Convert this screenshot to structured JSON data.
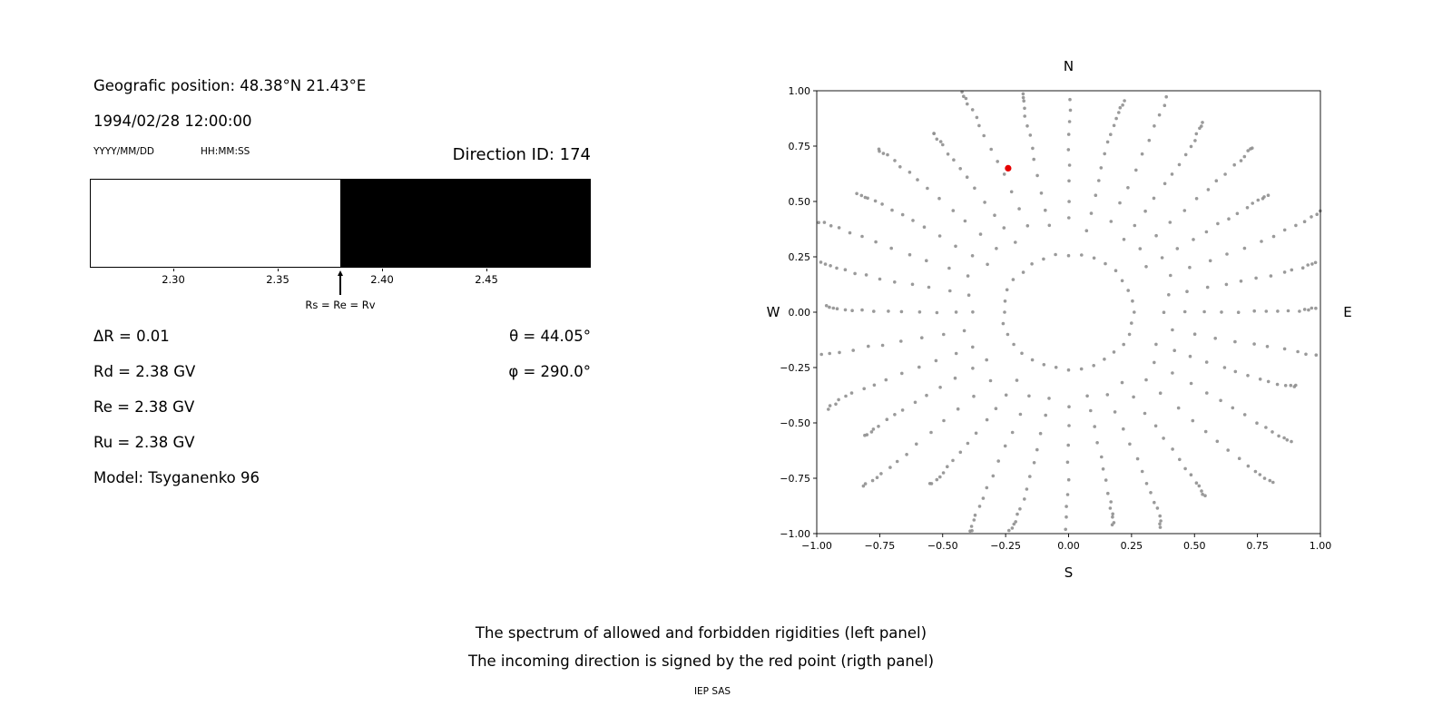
{
  "left_panel": {
    "geo_position": "Geografic position: 48.38°N 21.43°E",
    "datetime": "1994/02/28 12:00:00",
    "date_format_label": "YYYY/MM/DD",
    "time_format_label": "HH:MM:SS",
    "direction_id_label": "Direction ID: 174",
    "params_left": [
      "ΔR = 0.01",
      "Rd = 2.38 GV",
      "Re = 2.38 GV",
      "Ru = 2.38 GV",
      "Model: Tsyganenko 96"
    ],
    "params_right": [
      "θ = 44.05°",
      "φ = 290.0°"
    ]
  },
  "chart_data": [
    {
      "type": "area",
      "name": "rigidity-spectrum",
      "title": "",
      "xlim": [
        2.26,
        2.5
      ],
      "xticks": [
        2.3,
        2.35,
        2.4,
        2.45
      ],
      "boundary": 2.38,
      "regions": [
        {
          "from": 2.26,
          "to": 2.38,
          "color": "#ffffff",
          "label": "allowed rigidities"
        },
        {
          "from": 2.38,
          "to": 2.5,
          "color": "#000000",
          "label": "forbidden rigidities"
        }
      ],
      "annotation": "Rs = Re = Rv"
    },
    {
      "type": "scatter",
      "name": "incoming-direction-map",
      "title": "",
      "xlim": [
        -1.0,
        1.0
      ],
      "ylim": [
        -1.0,
        1.0
      ],
      "xticks": [
        -1.0,
        -0.75,
        -0.5,
        -0.25,
        0.0,
        0.25,
        0.5,
        0.75,
        1.0
      ],
      "yticks": [
        1.0,
        0.75,
        0.5,
        0.25,
        0.0,
        -0.25,
        -0.5,
        -0.75,
        -1.0
      ],
      "grid": false,
      "compass_labels": {
        "top": "N",
        "bottom": "S",
        "left": "W",
        "right": "E"
      },
      "dot_color": "#8f8f8f",
      "red_point": {
        "x": -0.24,
        "y": 0.65,
        "color": "#e50000"
      },
      "pattern": {
        "description": "Gray dots form 32 radial spokes (every 11.25° of azimuth) with dots accumulating toward the outer edge, plus an inner ring of dots at radius ~0.26; the red point marks the incoming direction.",
        "num_spokes": 32,
        "azimuth_start_deg": 0,
        "azimuth_step_deg": 11.25,
        "inner_ring_radius": 0.26,
        "spoke_radii": [
          0.4,
          0.48,
          0.56,
          0.635,
          0.705,
          0.765,
          0.82,
          0.87,
          0.912,
          0.948,
          0.975,
          0.995,
          1.012,
          1.025
        ],
        "spoke_scale": [
          1.05,
          0.95,
          1.1,
          0.98,
          1.02,
          0.93,
          1.08,
          1.0,
          0.96,
          1.06,
          0.94,
          1.03,
          1.09,
          0.97,
          1.01,
          0.95,
          1.07,
          0.99,
          1.04,
          0.93,
          1.1,
          0.96,
          1.02,
          1.06,
          0.94,
          1.0,
          1.08,
          0.97,
          1.03,
          0.95,
          1.05,
          0.99
        ],
        "curve_deg": 2.5
      }
    }
  ],
  "captions": {
    "line1": "The spectrum of allowed and forbidden rigidities (left panel)",
    "line2": "The incoming direction is signed by the red point (rigth panel)",
    "credit": "IEP SAS"
  }
}
